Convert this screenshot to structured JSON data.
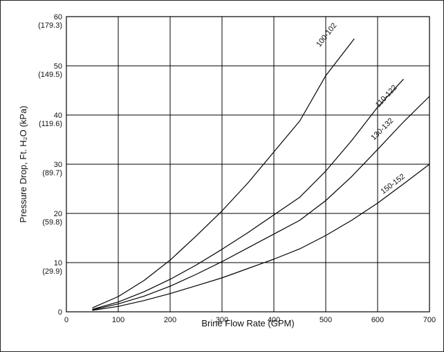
{
  "chart_data": {
    "type": "line",
    "title": "",
    "xlabel": "Brine Flow Rate (GPM)",
    "ylabel": "Pressure Drop, Ft. H₂O (kPa)",
    "xlim": [
      0,
      700
    ],
    "ylim": [
      0,
      60
    ],
    "grid": true,
    "x_ticks": [
      "0",
      "100",
      "200",
      "300",
      "400",
      "500",
      "600",
      "700"
    ],
    "y_ticks": [
      {
        "value": 0,
        "label": "0",
        "sub": ""
      },
      {
        "value": 10,
        "label": "10",
        "sub": "(29.9)"
      },
      {
        "value": 20,
        "label": "20",
        "sub": "(59.8)"
      },
      {
        "value": 30,
        "label": "30",
        "sub": "(89.7)"
      },
      {
        "value": 40,
        "label": "40",
        "sub": "(119.6)"
      },
      {
        "value": 50,
        "label": "50",
        "sub": "(149.5)"
      },
      {
        "value": 60,
        "label": "60",
        "sub": "(179.3)"
      }
    ],
    "series": [
      {
        "name": "100-102",
        "label_at": [
          505,
          56
        ],
        "points": [
          [
            50,
            0.8
          ],
          [
            100,
            3.1
          ],
          [
            150,
            6.4
          ],
          [
            200,
            10.5
          ],
          [
            250,
            15.4
          ],
          [
            300,
            20.5
          ],
          [
            350,
            26.2
          ],
          [
            400,
            32.5
          ],
          [
            450,
            38.8
          ],
          [
            500,
            48.0
          ],
          [
            555,
            55.5
          ]
        ]
      },
      {
        "name": "110-122",
        "label_at": [
          620,
          43.5
        ],
        "points": [
          [
            50,
            0.5
          ],
          [
            100,
            2.0
          ],
          [
            150,
            4.1
          ],
          [
            200,
            6.6
          ],
          [
            250,
            9.5
          ],
          [
            300,
            12.7
          ],
          [
            350,
            16.1
          ],
          [
            400,
            19.7
          ],
          [
            450,
            23.3
          ],
          [
            500,
            28.6
          ],
          [
            550,
            34.8
          ],
          [
            600,
            41.6
          ],
          [
            650,
            47.3
          ]
        ]
      },
      {
        "name": "130-132",
        "label_at": [
          612,
          36.8
        ],
        "points": [
          [
            50,
            0.4
          ],
          [
            100,
            1.6
          ],
          [
            150,
            3.2
          ],
          [
            200,
            5.2
          ],
          [
            250,
            7.6
          ],
          [
            300,
            10.2
          ],
          [
            350,
            13.0
          ],
          [
            400,
            15.8
          ],
          [
            450,
            18.6
          ],
          [
            500,
            22.6
          ],
          [
            550,
            27.5
          ],
          [
            600,
            33.0
          ],
          [
            650,
            38.6
          ],
          [
            700,
            43.8
          ]
        ]
      },
      {
        "name": "150-152",
        "label_at": [
          632,
          25.6
        ],
        "points": [
          [
            50,
            0.3
          ],
          [
            100,
            1.1
          ],
          [
            150,
            2.3
          ],
          [
            200,
            3.7
          ],
          [
            250,
            5.3
          ],
          [
            300,
            6.9
          ],
          [
            350,
            8.8
          ],
          [
            400,
            10.7
          ],
          [
            450,
            12.8
          ],
          [
            500,
            15.5
          ],
          [
            550,
            18.6
          ],
          [
            600,
            22.1
          ],
          [
            650,
            26.0
          ],
          [
            700,
            30.0
          ]
        ]
      }
    ]
  }
}
